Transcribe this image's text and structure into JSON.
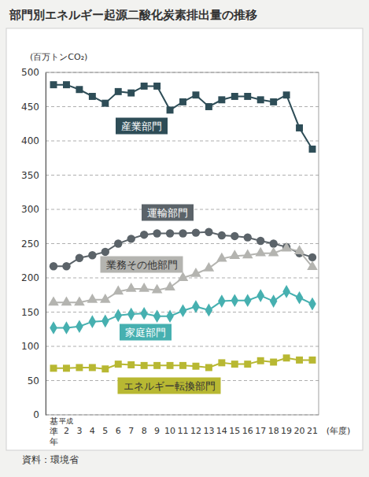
{
  "chart_data": {
    "type": "line",
    "title": "部門別エネルギー起源二酸化炭素排出量の推移",
    "y_label": "(百万トンCO₂)",
    "x_label": "(年度)",
    "source": "資料：環境省",
    "categories": [
      "基準年",
      "平成2",
      "3",
      "4",
      "5",
      "6",
      "7",
      "8",
      "9",
      "10",
      "11",
      "12",
      "13",
      "14",
      "15",
      "16",
      "17",
      "18",
      "19",
      "20",
      "21"
    ],
    "ylim": [
      0,
      500
    ],
    "yticks": [
      0,
      50,
      100,
      150,
      200,
      250,
      300,
      350,
      400,
      450,
      500
    ],
    "grid": true,
    "series": [
      {
        "name": "産業部門",
        "color": "#2e4d57",
        "marker": "square",
        "values": [
          482,
          482,
          475,
          465,
          455,
          472,
          470,
          480,
          480,
          445,
          457,
          467,
          450,
          460,
          465,
          465,
          460,
          457,
          467,
          419,
          388
        ]
      },
      {
        "name": "運輸部門",
        "color": "#5b6369",
        "marker": "circle",
        "values": [
          217,
          217,
          229,
          233,
          238,
          250,
          257,
          263,
          265,
          265,
          265,
          266,
          267,
          262,
          261,
          259,
          254,
          250,
          245,
          236,
          230
        ]
      },
      {
        "name": "業務その他部門",
        "color": "#b4b4b0",
        "marker": "triangle",
        "values": [
          164,
          164,
          164,
          168,
          168,
          180,
          184,
          184,
          182,
          186,
          200,
          206,
          214,
          228,
          232,
          233,
          236,
          236,
          243,
          239,
          216
        ]
      },
      {
        "name": "家庭部門",
        "color": "#46b0b0",
        "marker": "diamond",
        "values": [
          127,
          127,
          129,
          136,
          137,
          145,
          147,
          148,
          144,
          144,
          152,
          158,
          153,
          166,
          167,
          167,
          174,
          166,
          180,
          171,
          162
        ]
      },
      {
        "name": "エネルギー転換部門",
        "color": "#b8b832",
        "marker": "square",
        "values": [
          68,
          68,
          69,
          69,
          67,
          74,
          73,
          72,
          72,
          72,
          72,
          71,
          69,
          76,
          74,
          74,
          79,
          77,
          83,
          80,
          80
        ]
      }
    ]
  }
}
